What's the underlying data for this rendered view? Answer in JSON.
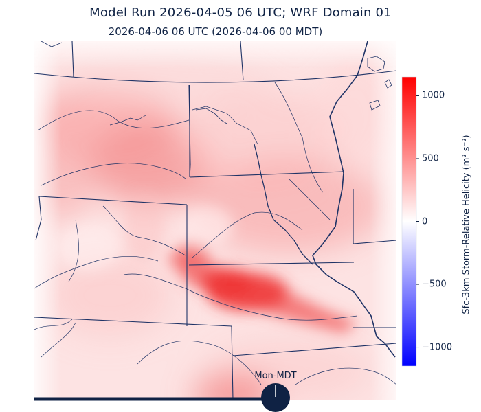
{
  "title": "Model Run 2026-04-05 06 UTC; WRF Domain 01",
  "subtitle": "2026-04-06 06 UTC  (2026-04-06 00 MDT)",
  "colorbar": {
    "label": "Sfc-3km Storm-Relative Helicity (m² s⁻²)",
    "range": [
      -1150,
      1150
    ],
    "ticks": [
      {
        "value": 1000,
        "label": "1000"
      },
      {
        "value": 500,
        "label": "500"
      },
      {
        "value": 0,
        "label": "0"
      },
      {
        "value": -500,
        "label": "−500"
      },
      {
        "value": -1000,
        "label": "−1000"
      }
    ],
    "colormap": "bwr",
    "colors": {
      "min": "#0000ff",
      "mid": "#ffffff",
      "max": "#ff0000"
    }
  },
  "timeline": {
    "label": "Mon-MDT",
    "color": "#0f2244",
    "progress": 0.67
  },
  "map": {
    "field": "storm-relative-helicity",
    "border_color": "#1f3366",
    "features": [
      "state-borders",
      "rivers",
      "lakes"
    ]
  }
}
